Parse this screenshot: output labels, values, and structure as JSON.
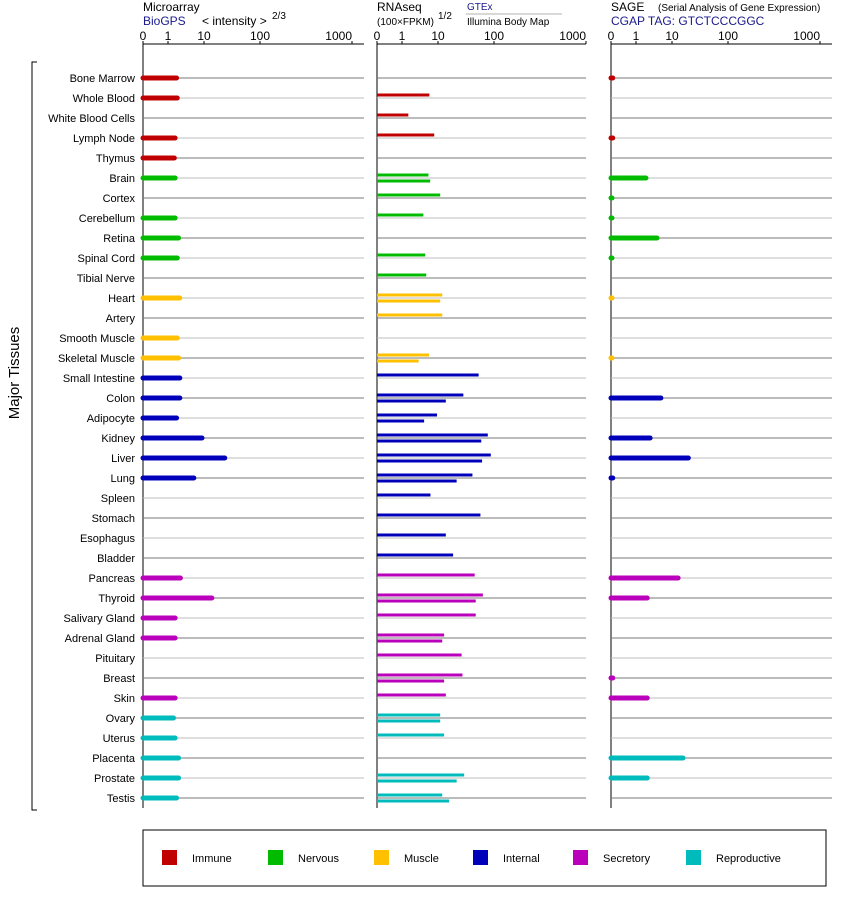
{
  "chart_data": {
    "type": "bar",
    "ylabel": "Major Tissues",
    "panels": [
      {
        "id": "microarray",
        "title": "Microarray",
        "source_link": "BioGPS",
        "scale_label": "< intensity >",
        "scale_exponent": "2/3",
        "ticks": [
          "0",
          "1",
          "10",
          "100",
          "1000"
        ],
        "xlim": [
          0,
          1000
        ]
      },
      {
        "id": "rnaseq",
        "title": "RNAseq",
        "source_link": "GTEx",
        "source_sub": "Illumina Body Map",
        "scale_label": "(100×FPKM)",
        "scale_exponent": "1/2",
        "ticks": [
          "0",
          "1",
          "10",
          "100",
          "1000"
        ],
        "xlim": [
          0,
          1000
        ]
      },
      {
        "id": "sage",
        "title": "SAGE",
        "subtitle": "(Serial Analysis of Gene Expression)",
        "tag_label": "CGAP  TAG: GTCTCCCGGC",
        "ticks": [
          "0",
          "1",
          "10",
          "100",
          "1000"
        ],
        "xlim": [
          0,
          1000
        ]
      }
    ],
    "categories": [
      {
        "name": "Immune",
        "color": "#c00000"
      },
      {
        "name": "Nervous",
        "color": "#00bb00"
      },
      {
        "name": "Muscle",
        "color": "#ffc000"
      },
      {
        "name": "Internal",
        "color": "#0000bb"
      },
      {
        "name": "Secretory",
        "color": "#bb00bb"
      },
      {
        "name": "Reproductive",
        "color": "#00bbbb"
      }
    ],
    "tissues": [
      {
        "name": "Bone Marrow",
        "group": "Immune",
        "microarray": [
          2.0
        ],
        "rnaseq": [],
        "sage": [
          0.05
        ]
      },
      {
        "name": "Whole Blood",
        "group": "Immune",
        "microarray": [
          2.1
        ],
        "rnaseq": [
          6.3
        ],
        "sage": []
      },
      {
        "name": "White Blood Cells",
        "group": "Immune",
        "microarray": [],
        "rnaseq": [
          1.7
        ],
        "sage": []
      },
      {
        "name": "Lymph Node",
        "group": "Immune",
        "microarray": [
          1.8
        ],
        "rnaseq": [
          8.2
        ],
        "sage": [
          0.05
        ]
      },
      {
        "name": "Thymus",
        "group": "Immune",
        "microarray": [
          1.7
        ],
        "rnaseq": [],
        "sage": []
      },
      {
        "name": "Brain",
        "group": "Nervous",
        "microarray": [
          1.8
        ],
        "rnaseq": [
          6.0,
          6.6
        ],
        "sage": [
          2.2
        ]
      },
      {
        "name": "Cortex",
        "group": "Nervous",
        "microarray": [],
        "rnaseq": [
          11.0
        ],
        "sage": [
          0.02
        ]
      },
      {
        "name": "Cerebellum",
        "group": "Nervous",
        "microarray": [
          1.8
        ],
        "rnaseq": [
          4.5
        ],
        "sage": [
          0.02
        ]
      },
      {
        "name": "Retina",
        "group": "Nervous",
        "microarray": [
          2.3
        ],
        "rnaseq": [],
        "sage": [
          4.4
        ]
      },
      {
        "name": "Spinal Cord",
        "group": "Nervous",
        "microarray": [
          2.1
        ],
        "rnaseq": [
          5.0
        ],
        "sage": [
          0.02
        ]
      },
      {
        "name": "Tibial Nerve",
        "group": "Nervous",
        "microarray": [],
        "rnaseq": [
          5.3
        ],
        "sage": []
      },
      {
        "name": "Heart",
        "group": "Muscle",
        "microarray": [
          2.5
        ],
        "rnaseq": [
          12.0,
          11.0
        ],
        "sage": [
          0.01
        ]
      },
      {
        "name": "Artery",
        "group": "Muscle",
        "microarray": [],
        "rnaseq": [
          12.0
        ],
        "sage": []
      },
      {
        "name": "Smooth Muscle",
        "group": "Muscle",
        "microarray": [
          2.1
        ],
        "rnaseq": [],
        "sage": []
      },
      {
        "name": "Skeletal Muscle",
        "group": "Muscle",
        "microarray": [
          2.3
        ],
        "rnaseq": [
          6.2,
          3.4
        ],
        "sage": [
          0.01
        ]
      },
      {
        "name": "Small Intestine",
        "group": "Internal",
        "microarray": [
          2.5
        ],
        "rnaseq": [
          54.0
        ],
        "sage": []
      },
      {
        "name": "Colon",
        "group": "Internal",
        "microarray": [
          2.5
        ],
        "rnaseq": [
          29.0,
          14.0
        ],
        "sage": [
          5.5
        ]
      },
      {
        "name": "Adipocyte",
        "group": "Internal",
        "microarray": [
          2.0
        ],
        "rnaseq": [
          9.5,
          4.7
        ],
        "sage": []
      },
      {
        "name": "Kidney",
        "group": "Internal",
        "microarray": [
          9.0
        ],
        "rnaseq": [
          78.0,
          60.0
        ],
        "sage": [
          2.9
        ]
      },
      {
        "name": "Liver",
        "group": "Internal",
        "microarray": [
          24.0
        ],
        "rnaseq": [
          88.0,
          62.0
        ],
        "sage": [
          20.0
        ]
      },
      {
        "name": "Lung",
        "group": "Internal",
        "microarray": [
          5.8
        ],
        "rnaseq": [
          42.0,
          22.0
        ],
        "sage": [
          0.05
        ]
      },
      {
        "name": "Spleen",
        "group": "Internal",
        "microarray": [],
        "rnaseq": [
          6.7
        ],
        "sage": []
      },
      {
        "name": "Stomach",
        "group": "Internal",
        "microarray": [],
        "rnaseq": [
          58.0
        ],
        "sage": []
      },
      {
        "name": "Esophagus",
        "group": "Internal",
        "microarray": [],
        "rnaseq": [
          14.0
        ],
        "sage": []
      },
      {
        "name": "Bladder",
        "group": "Internal",
        "microarray": [],
        "rnaseq": [
          19.0
        ],
        "sage": []
      },
      {
        "name": "Pancreas",
        "group": "Secretory",
        "microarray": [
          2.6
        ],
        "rnaseq": [
          46.0
        ],
        "sage": [
          13.0
        ]
      },
      {
        "name": "Thyroid",
        "group": "Secretory",
        "microarray": [
          14.0
        ],
        "rnaseq": [
          64.0,
          48.0
        ],
        "sage": [
          2.4
        ]
      },
      {
        "name": "Salivary Gland",
        "group": "Secretory",
        "microarray": [
          1.8
        ],
        "rnaseq": [
          48.0
        ],
        "sage": []
      },
      {
        "name": "Adrenal Gland",
        "group": "Secretory",
        "microarray": [
          1.8
        ],
        "rnaseq": [
          13.0,
          12.0
        ],
        "sage": []
      },
      {
        "name": "Pituitary",
        "group": "Secretory",
        "microarray": [],
        "rnaseq": [
          27.0
        ],
        "sage": []
      },
      {
        "name": "Breast",
        "group": "Secretory",
        "microarray": [],
        "rnaseq": [
          28.0,
          13.0
        ],
        "sage": [
          0.05
        ]
      },
      {
        "name": "Skin",
        "group": "Secretory",
        "microarray": [
          1.8
        ],
        "rnaseq": [
          14.0
        ],
        "sage": [
          2.4
        ]
      },
      {
        "name": "Ovary",
        "group": "Reproductive",
        "microarray": [
          1.6
        ],
        "rnaseq": [
          11.0,
          11.0
        ],
        "sage": []
      },
      {
        "name": "Uterus",
        "group": "Reproductive",
        "microarray": [
          1.8
        ],
        "rnaseq": [
          13.0
        ],
        "sage": []
      },
      {
        "name": "Placenta",
        "group": "Reproductive",
        "microarray": [
          2.3
        ],
        "rnaseq": [],
        "sage": [
          16.0
        ]
      },
      {
        "name": "Prostate",
        "group": "Reproductive",
        "microarray": [
          2.3
        ],
        "rnaseq": [
          30.0,
          22.0
        ],
        "sage": [
          2.4
        ]
      },
      {
        "name": "Testis",
        "group": "Reproductive",
        "microarray": [
          2.0
        ],
        "rnaseq": [
          12.0,
          16.0
        ],
        "sage": []
      }
    ]
  }
}
